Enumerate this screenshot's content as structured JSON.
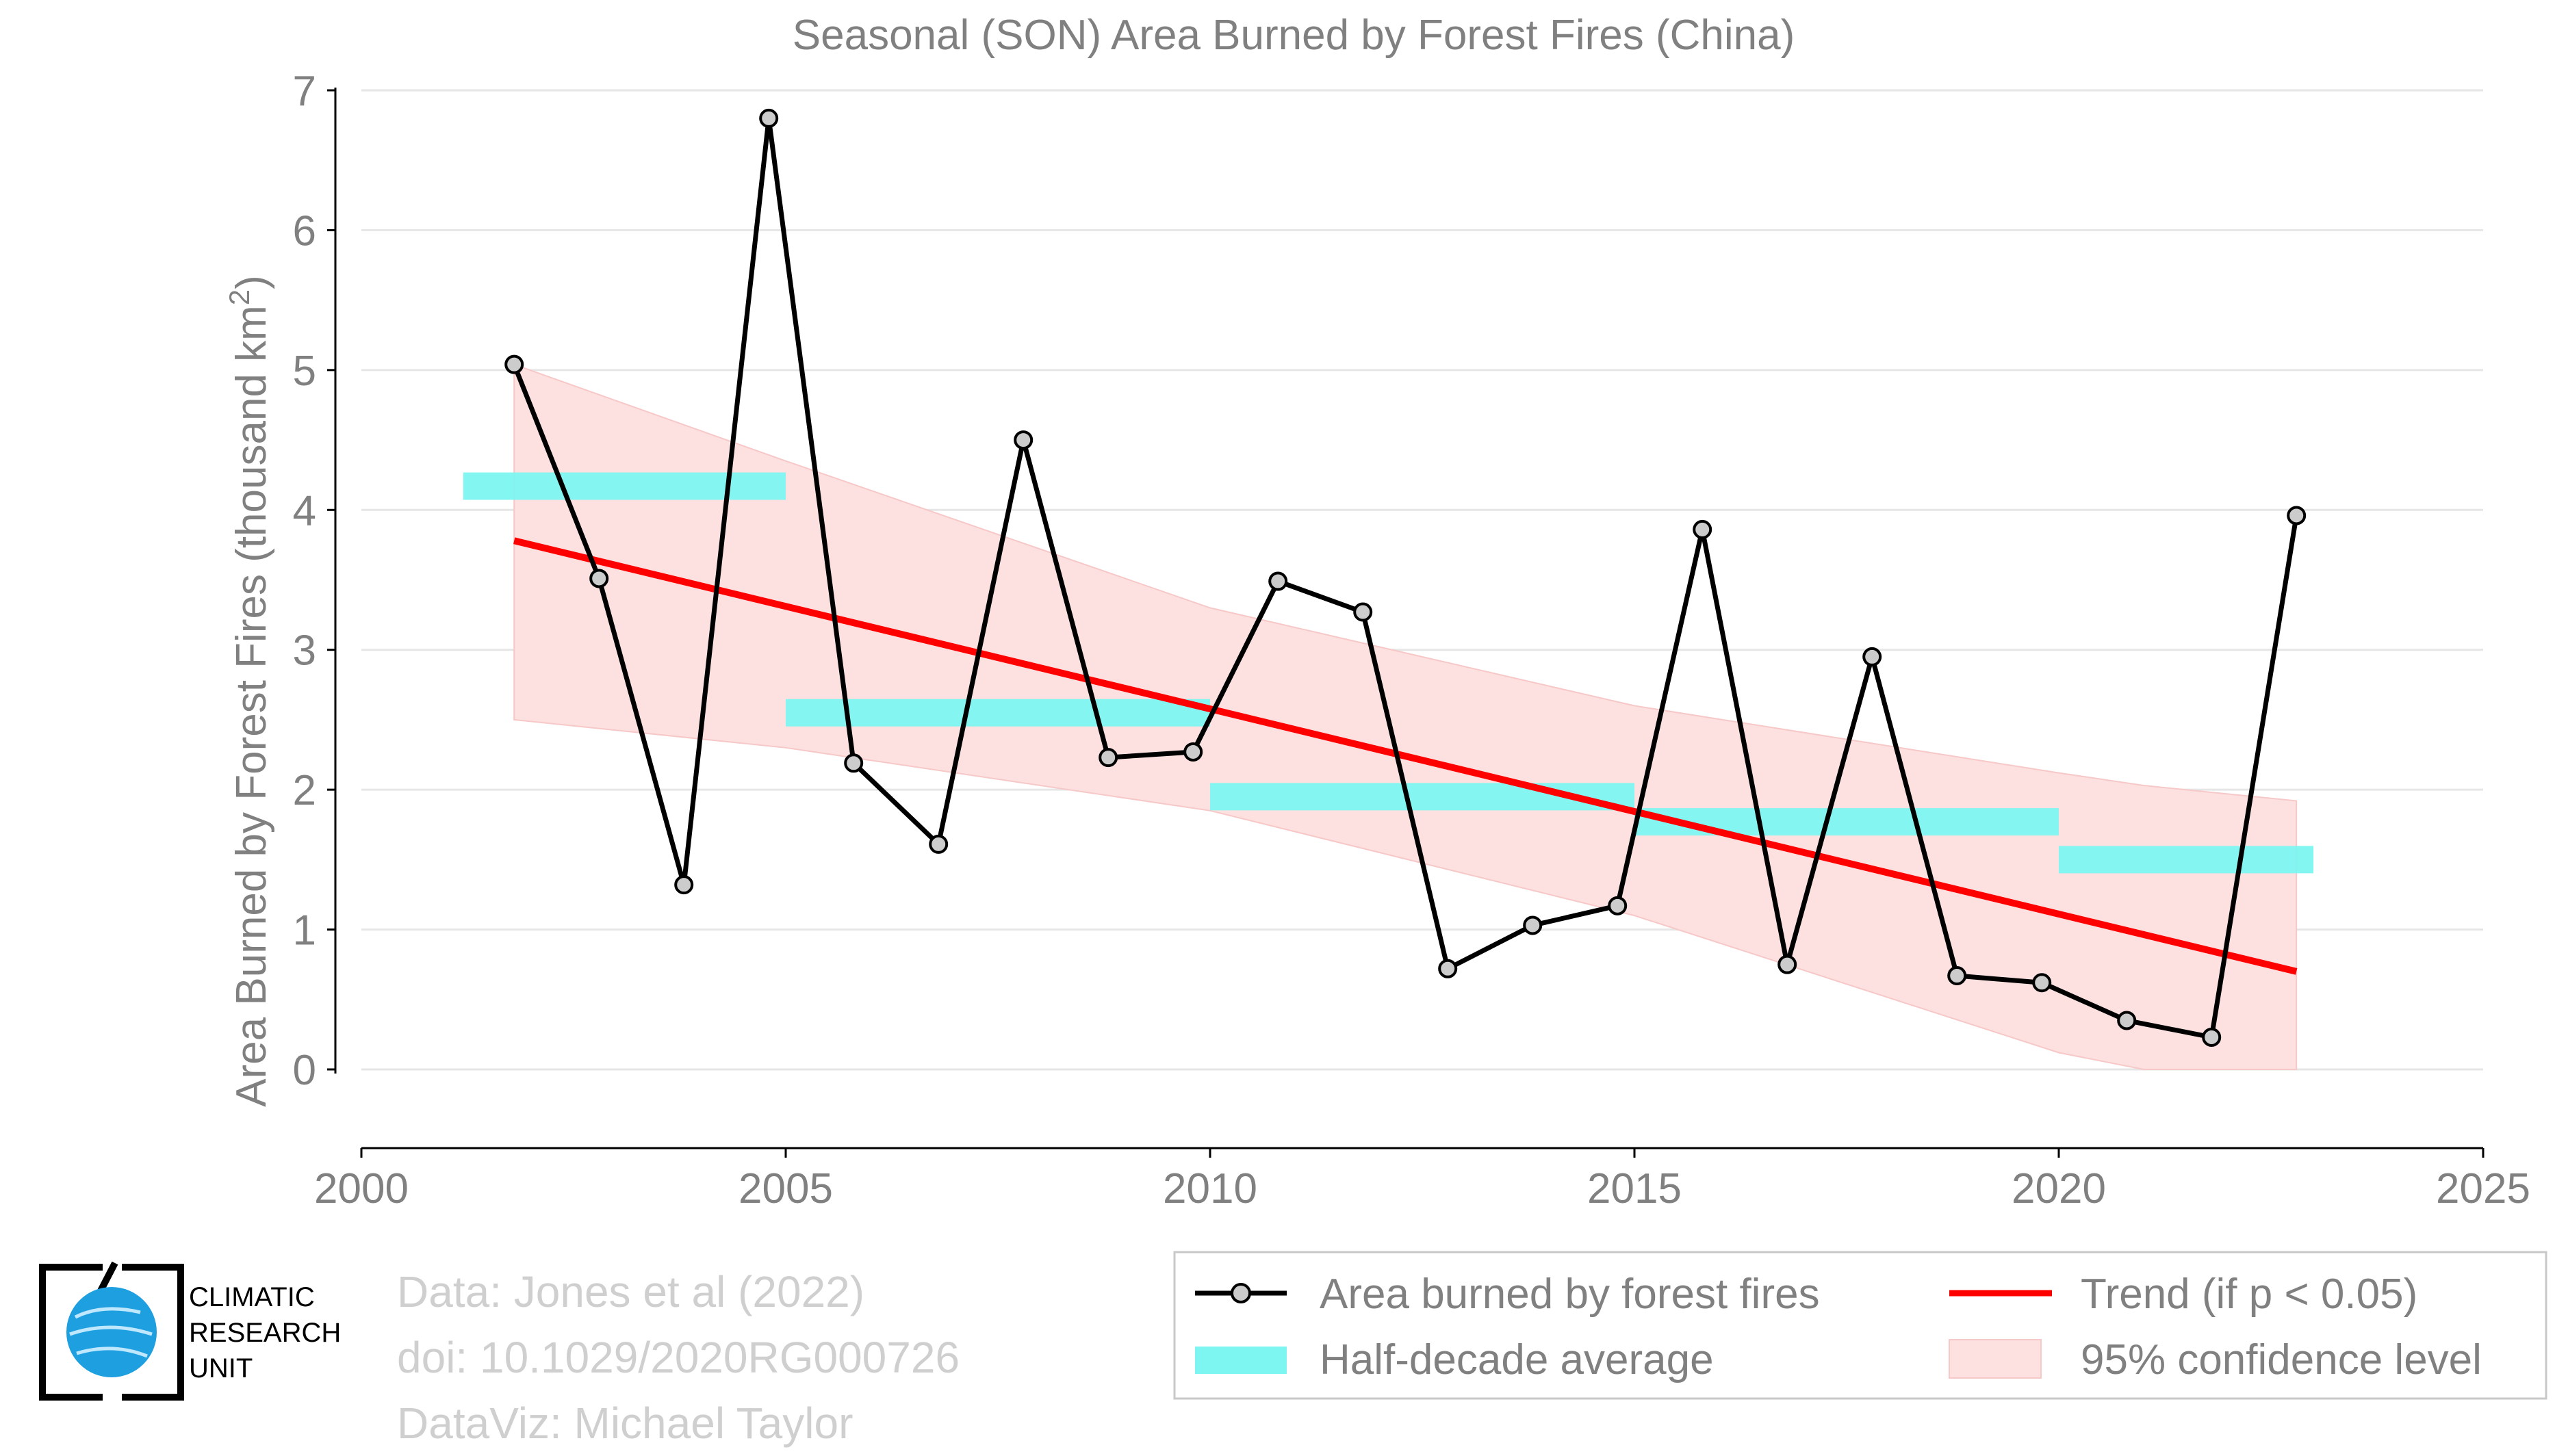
{
  "chart_data": {
    "type": "line",
    "title": "Seasonal (SON) Area Burned by Forest Fires (China)",
    "ylabel_main": "Area Burned by Forest Fires (thousand km",
    "ylabel_sup": "2",
    "ylabel_close": ")",
    "xlabel": "",
    "xlim": [
      2000,
      2025
    ],
    "ylim": [
      0,
      7
    ],
    "xticks": [
      2000,
      2005,
      2010,
      2015,
      2020,
      2025
    ],
    "yticks": [
      0,
      1,
      2,
      3,
      4,
      5,
      6,
      7
    ],
    "grid": true,
    "legend_position": "bottom-right",
    "series": [
      {
        "name": "Area burned by forest fires",
        "kind": "line-markers",
        "color": "#000000",
        "marker_fill": "#cccccc",
        "x": [
          2001.8,
          2002.8,
          2003.8,
          2004.8,
          2005.8,
          2006.8,
          2007.8,
          2008.8,
          2009.8,
          2010.8,
          2011.8,
          2012.8,
          2013.8,
          2014.8,
          2015.8,
          2016.8,
          2017.8,
          2018.8,
          2019.8,
          2020.8,
          2021.8,
          2022.8
        ],
        "y": [
          5.04,
          3.51,
          1.32,
          6.8,
          2.19,
          1.61,
          4.5,
          2.23,
          2.27,
          3.49,
          3.27,
          0.72,
          1.03,
          1.17,
          3.86,
          0.75,
          2.95,
          0.67,
          0.62,
          0.35,
          0.23,
          3.96
        ]
      },
      {
        "name": "Half-decade average",
        "kind": "step-bars",
        "color": "#7df5f0",
        "segments": [
          {
            "x0": 2001.2,
            "x1": 2005.0,
            "y": 4.17
          },
          {
            "x0": 2005.0,
            "x1": 2010.0,
            "y": 2.55
          },
          {
            "x0": 2010.0,
            "x1": 2015.0,
            "y": 1.95
          },
          {
            "x0": 2015.0,
            "x1": 2020.0,
            "y": 1.77
          },
          {
            "x0": 2020.0,
            "x1": 2023.0,
            "y": 1.5
          }
        ]
      },
      {
        "name": "Trend (if p < 0.05)",
        "kind": "trend",
        "color": "#ff0000",
        "x": [
          2001.8,
          2022.8
        ],
        "y": [
          3.78,
          0.7
        ]
      },
      {
        "name": "95% confidence level",
        "kind": "band",
        "color": "#fde0e0",
        "x": [
          2001.8,
          2005.0,
          2010.0,
          2015.0,
          2020.0,
          2021.0,
          2022.8
        ],
        "upper": [
          5.04,
          4.35,
          3.3,
          2.6,
          2.12,
          2.03,
          1.92
        ],
        "lower": [
          2.5,
          2.3,
          1.85,
          1.1,
          0.12,
          0.0,
          0.0
        ]
      }
    ],
    "legend": [
      {
        "label": "Area burned by forest fires",
        "kind": "line-markers"
      },
      {
        "label": "Trend (if p < 0.05)",
        "kind": "trend"
      },
      {
        "label": "Half-decade average",
        "kind": "step-bars"
      },
      {
        "label": "95% confidence level",
        "kind": "band"
      }
    ]
  },
  "credits": {
    "line1": "Data: Jones et al (2022)",
    "line2": "doi: 10.1029/2020RG000726",
    "line3": "DataViz: Michael Taylor"
  },
  "logo": {
    "line1": "CLIMATIC",
    "line2": "RESEARCH",
    "line3": "UNIT"
  },
  "colors": {
    "axis_text": "#808080",
    "grid": "#e6e6e6",
    "logo_blue": "#1e9fe0"
  }
}
